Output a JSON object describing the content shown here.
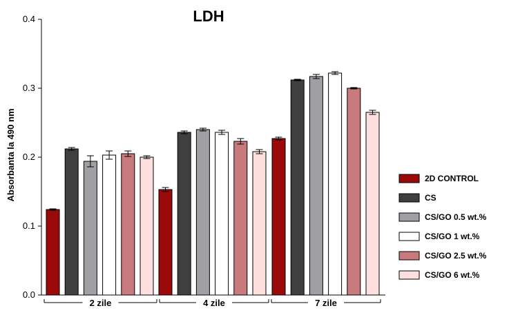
{
  "chart_data": {
    "type": "bar",
    "title": "LDH",
    "xlabel": "",
    "ylabel": "Absorbanta la 490 nm",
    "ylim": [
      0,
      0.4
    ],
    "yticks": [
      "0.0",
      "0.1",
      "0.2",
      "0.3",
      "0.4"
    ],
    "categories": [
      "2 zile",
      "4 zile",
      "7 zile"
    ],
    "legend_position": "right",
    "grid": false,
    "series": [
      {
        "name": "2D CONTROL",
        "color": "#9b0a0a",
        "values": [
          0.124,
          0.153,
          0.227
        ],
        "errors": [
          0.001,
          0.003,
          0.002
        ]
      },
      {
        "name": "CS",
        "color": "#3f3f3f",
        "values": [
          0.212,
          0.236,
          0.312
        ],
        "errors": [
          0.002,
          0.002,
          0.001
        ]
      },
      {
        "name": "CS/GO 0.5 wt.%",
        "color": "#a0a0a4",
        "values": [
          0.194,
          0.24,
          0.317
        ],
        "errors": [
          0.008,
          0.002,
          0.003
        ]
      },
      {
        "name": "CS/GO 1 wt.%",
        "color": "#ffffff",
        "values": [
          0.203,
          0.236,
          0.322
        ],
        "errors": [
          0.006,
          0.003,
          0.002
        ]
      },
      {
        "name": "CS/GO 2.5 wt.%",
        "color": "#c97a7c",
        "values": [
          0.205,
          0.223,
          0.3
        ],
        "errors": [
          0.004,
          0.004,
          0.001
        ]
      },
      {
        "name": "CS/GO 6 wt.%",
        "color": "#fde0de",
        "values": [
          0.2,
          0.208,
          0.265
        ],
        "errors": [
          0.002,
          0.003,
          0.003
        ]
      }
    ]
  }
}
